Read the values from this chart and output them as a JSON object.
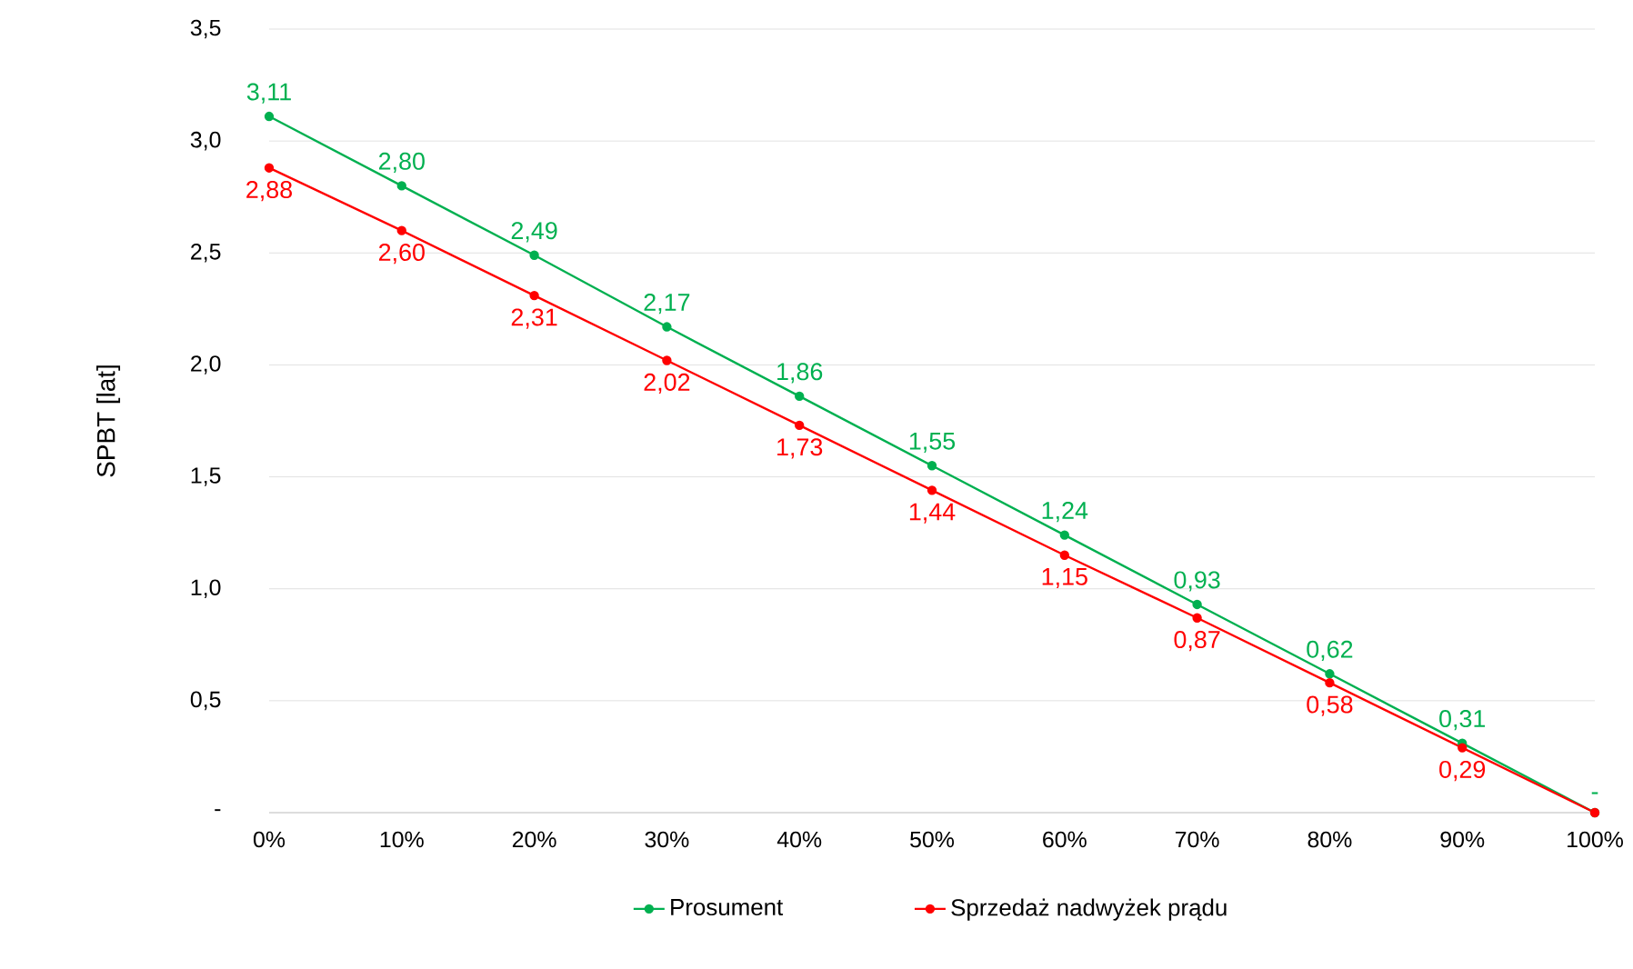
{
  "chart_data": {
    "type": "line",
    "ylabel": "SPBT [lat]",
    "categories": [
      "0%",
      "10%",
      "20%",
      "30%",
      "40%",
      "50%",
      "60%",
      "70%",
      "80%",
      "90%",
      "100%"
    ],
    "series": [
      {
        "name": "Prosument",
        "color": "#00b050",
        "values": [
          3.11,
          2.8,
          2.49,
          2.17,
          1.86,
          1.55,
          1.24,
          0.93,
          0.62,
          0.31,
          0
        ],
        "value_labels": [
          "3,11",
          "2,80",
          "2,49",
          "2,17",
          "1,86",
          "1,55",
          "1,24",
          "0,93",
          "0,62",
          "0,31",
          "-"
        ]
      },
      {
        "name": "Sprzedaż nadwyżek prądu",
        "color": "#ff0000",
        "values": [
          2.88,
          2.6,
          2.31,
          2.02,
          1.73,
          1.44,
          1.15,
          0.87,
          0.58,
          0.29,
          0
        ],
        "value_labels": [
          "2,88",
          "2,60",
          "2,31",
          "2,02",
          "1,73",
          "1,44",
          "1,15",
          "0,87",
          "0,58",
          "0,29",
          null
        ]
      }
    ],
    "ylim": [
      0,
      3.5
    ],
    "yticks": [
      {
        "value": 0,
        "label": "-"
      },
      {
        "value": 0.5,
        "label": "0,5"
      },
      {
        "value": 1.0,
        "label": "1,0"
      },
      {
        "value": 1.5,
        "label": "1,5"
      },
      {
        "value": 2.0,
        "label": "2,0"
      },
      {
        "value": 2.5,
        "label": "2,5"
      },
      {
        "value": 3.0,
        "label": "3,0"
      },
      {
        "value": 3.5,
        "label": "3,5"
      }
    ],
    "grid": "y",
    "legend": "bottom",
    "marker": "circle",
    "line_style": "solid"
  }
}
